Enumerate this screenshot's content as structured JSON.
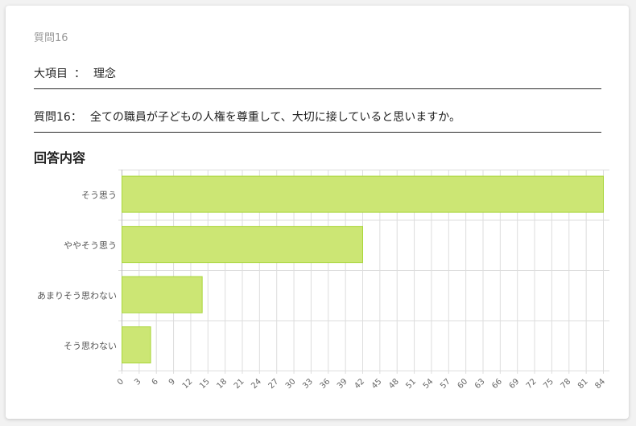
{
  "question_number": "質問16",
  "major_item": {
    "label": "大項目",
    "separator": "：",
    "value": "理念"
  },
  "question": {
    "label": "質問16：",
    "text": "全ての職員が子どもの人権を尊重して、大切に接していると思いますか。"
  },
  "section_title": "回答内容",
  "colors": {
    "bar_fill": "#cce674",
    "bar_stroke": "#a9d63a",
    "grid": "#dddddd"
  },
  "chart_data": {
    "type": "bar",
    "orientation": "horizontal",
    "categories": [
      "そう思う",
      "ややそう思う",
      "あまりそう思わない",
      "そう思わない"
    ],
    "values": [
      84,
      42,
      14,
      5
    ],
    "xlim": [
      0,
      84
    ],
    "x_ticks": [
      0,
      3,
      6,
      9,
      12,
      15,
      18,
      21,
      24,
      27,
      30,
      33,
      36,
      39,
      42,
      45,
      48,
      51,
      54,
      57,
      60,
      63,
      66,
      69,
      72,
      75,
      78,
      81,
      84
    ],
    "grid": true,
    "legend": "none"
  }
}
